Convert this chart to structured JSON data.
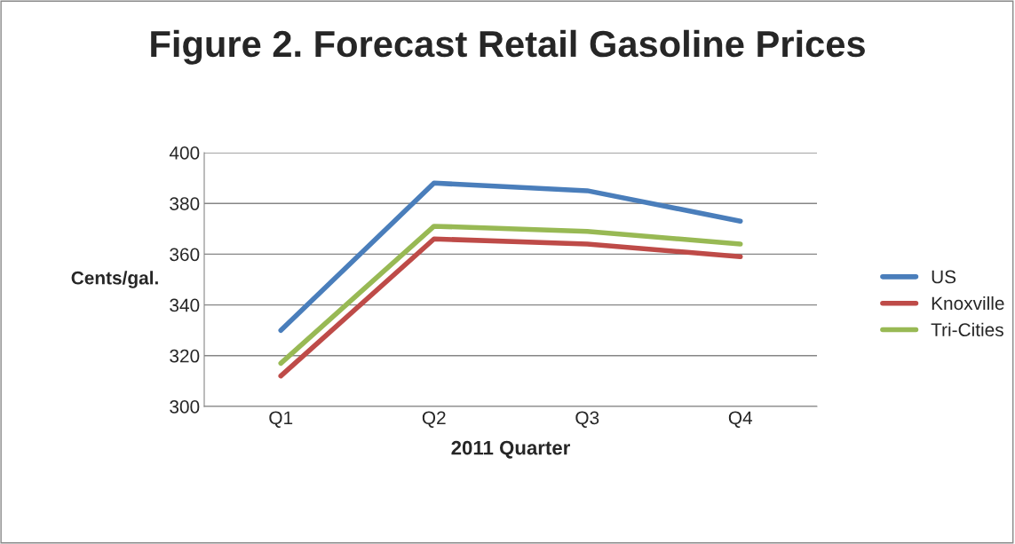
{
  "chart_data": {
    "type": "line",
    "title": "Figure 2. Forecast Retail Gasoline Prices",
    "xlabel": "2011 Quarter",
    "ylabel": "Cents/gal.",
    "categories": [
      "Q1",
      "Q2",
      "Q3",
      "Q4"
    ],
    "series": [
      {
        "name": "US",
        "color": "#4a7ebb",
        "values": [
          330,
          388,
          385,
          373
        ]
      },
      {
        "name": "Knoxville",
        "color": "#be4b48",
        "values": [
          312,
          366,
          364,
          359
        ]
      },
      {
        "name": "Tri-Cities",
        "color": "#98b954",
        "values": [
          317,
          371,
          369,
          364
        ]
      }
    ],
    "ylim": [
      300,
      400
    ],
    "yticks": [
      300,
      320,
      340,
      360,
      380,
      400
    ],
    "grid": "y",
    "legend": "right",
    "marker": "none",
    "line_style": "solid"
  }
}
